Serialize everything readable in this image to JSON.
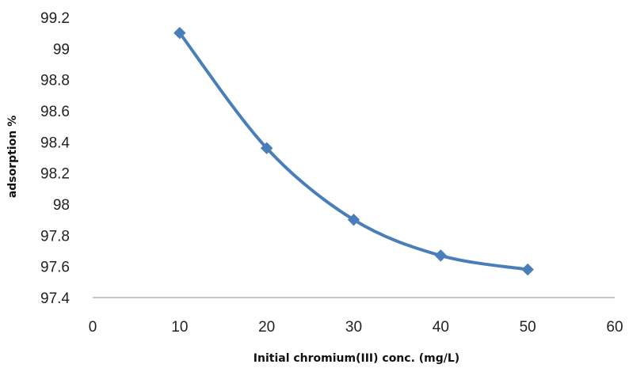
{
  "chart_data": {
    "type": "line",
    "title": "",
    "xlabel": "Initial chromium(III) conc.  (mg/L)",
    "ylabel": "adsorption %",
    "xlim": [
      0,
      60
    ],
    "ylim": [
      97.4,
      99.2
    ],
    "x_ticks": [
      "0",
      "10",
      "20",
      "30",
      "40",
      "50",
      "60"
    ],
    "y_ticks": [
      "97.4",
      "97.6",
      "97.8",
      "98",
      "98.2",
      "98.4",
      "98.6",
      "98.8",
      "99",
      "99.2"
    ],
    "grid": false,
    "smooth": true,
    "marker": "diamond",
    "series": [
      {
        "x": [
          10,
          20,
          30,
          40,
          50
        ],
        "y": [
          99.1,
          98.36,
          97.9,
          97.67,
          97.58
        ],
        "color": "#4a7ebb"
      }
    ]
  }
}
